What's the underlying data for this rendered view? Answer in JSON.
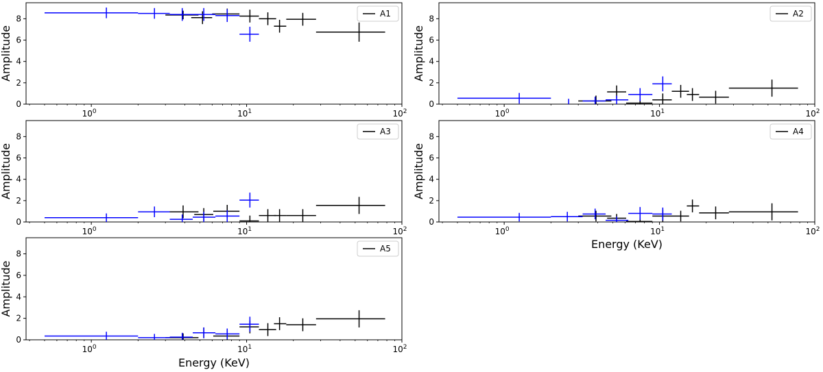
{
  "colors": {
    "series_black": "#000000",
    "series_blue": "#0000ff",
    "legend_border": "#cccccc"
  },
  "chart_data": [
    {
      "type": "scatter",
      "name": "A1",
      "legend": "A1",
      "legend_loc": "upper right",
      "ylabel": "Amplitude",
      "xlabel": "",
      "xscale": "log",
      "xlim": [
        0.38,
        100
      ],
      "ylim": [
        0,
        9.5
      ],
      "yticks": [
        0,
        2,
        4,
        6,
        8
      ],
      "xtick_labels": [
        {
          "base": "10",
          "exp": "0"
        },
        {
          "base": "10",
          "exp": "1"
        },
        {
          "base": "10",
          "exp": "2"
        }
      ],
      "series": [
        {
          "name": "black",
          "color": "black",
          "points": [
            {
              "x": 3.9,
              "xerr": [
                3.0,
                4.9
              ],
              "y": 8.35,
              "yerr": 0.4
            },
            {
              "x": 5.2,
              "xerr": [
                4.4,
                6.0
              ],
              "y": 8.1,
              "yerr": 0.6
            },
            {
              "x": 7.5,
              "xerr": [
                6.0,
                9.0
              ],
              "y": 8.45,
              "yerr": 0.5
            },
            {
              "x": 10.5,
              "xerr": [
                9.0,
                12.0
              ],
              "y": 8.25,
              "yerr": 0.6
            },
            {
              "x": 13.7,
              "xerr": [
                12.0,
                15.5
              ],
              "y": 8.0,
              "yerr": 0.6
            },
            {
              "x": 16.3,
              "xerr": [
                15.0,
                18.0
              ],
              "y": 7.3,
              "yerr": 0.6
            },
            {
              "x": 23.0,
              "xerr": [
                18.0,
                28.0
              ],
              "y": 7.95,
              "yerr": 0.6
            },
            {
              "x": 53.0,
              "xerr": [
                28.0,
                78.0
              ],
              "y": 6.75,
              "yerr": 0.9
            }
          ]
        },
        {
          "name": "blue",
          "color": "blue",
          "points": [
            {
              "x": 1.25,
              "xerr": [
                0.5,
                2.0
              ],
              "y": 8.55,
              "yerr": 0.5
            },
            {
              "x": 2.55,
              "xerr": [
                2.0,
                3.2
              ],
              "y": 8.5,
              "yerr": 0.5
            },
            {
              "x": 3.85,
              "xerr": [
                3.2,
                4.5
              ],
              "y": 8.4,
              "yerr": 0.6
            },
            {
              "x": 5.3,
              "xerr": [
                4.5,
                6.3
              ],
              "y": 8.4,
              "yerr": 0.6
            },
            {
              "x": 7.5,
              "xerr": [
                6.3,
                9.0
              ],
              "y": 8.3,
              "yerr": 0.6
            },
            {
              "x": 10.5,
              "xerr": [
                9.0,
                12.0
              ],
              "y": 6.55,
              "yerr": 0.7
            }
          ]
        }
      ]
    },
    {
      "type": "scatter",
      "name": "A2",
      "legend": "A2",
      "legend_loc": "upper right",
      "ylabel": "Amplitude",
      "xlabel": "",
      "xscale": "log",
      "xlim": [
        0.38,
        100
      ],
      "ylim": [
        0,
        9.5
      ],
      "yticks": [
        0,
        2,
        4,
        6,
        8
      ],
      "xtick_labels": [
        {
          "base": "10",
          "exp": "0"
        },
        {
          "base": "10",
          "exp": "1"
        },
        {
          "base": "10",
          "exp": "2"
        }
      ],
      "series": [
        {
          "name": "black",
          "color": "black",
          "points": [
            {
              "x": 3.9,
              "xerr": [
                3.0,
                4.9
              ],
              "y": 0.3,
              "yerr": 0.5
            },
            {
              "x": 5.3,
              "xerr": [
                4.6,
                6.1
              ],
              "y": 1.15,
              "yerr": 0.6
            },
            {
              "x": 7.5,
              "xerr": [
                6.1,
                9.0
              ],
              "y": 0.1,
              "yerr": 0.4
            },
            {
              "x": 10.5,
              "xerr": [
                9.0,
                12.0
              ],
              "y": 0.4,
              "yerr": 0.6
            },
            {
              "x": 13.7,
              "xerr": [
                12.0,
                15.5
              ],
              "y": 1.2,
              "yerr": 0.6
            },
            {
              "x": 16.3,
              "xerr": [
                15.0,
                18.0
              ],
              "y": 0.9,
              "yerr": 0.6
            },
            {
              "x": 23.0,
              "xerr": [
                18.0,
                28.0
              ],
              "y": 0.65,
              "yerr": 0.6
            },
            {
              "x": 53.0,
              "xerr": [
                28.0,
                78.0
              ],
              "y": 1.5,
              "yerr": 0.8
            }
          ]
        },
        {
          "name": "blue",
          "color": "blue",
          "points": [
            {
              "x": 1.25,
              "xerr": [
                0.5,
                2.0
              ],
              "y": 0.55,
              "yerr": 0.5
            },
            {
              "x": 2.6,
              "xerr": [
                2.6,
                2.6
              ],
              "y": 0.05,
              "yerr": 0.45
            },
            {
              "x": 3.85,
              "xerr": [
                3.2,
                4.5
              ],
              "y": 0.3,
              "yerr": 0.4
            },
            {
              "x": 5.3,
              "xerr": [
                4.5,
                6.3
              ],
              "y": 0.4,
              "yerr": 0.4
            },
            {
              "x": 7.5,
              "xerr": [
                6.3,
                9.0
              ],
              "y": 0.9,
              "yerr": 0.6
            },
            {
              "x": 10.5,
              "xerr": [
                9.0,
                12.0
              ],
              "y": 1.9,
              "yerr": 0.7
            }
          ]
        }
      ]
    },
    {
      "type": "scatter",
      "name": "A3",
      "legend": "A3",
      "legend_loc": "upper right",
      "ylabel": "Amplitude",
      "xlabel": "",
      "xscale": "log",
      "xlim": [
        0.38,
        100
      ],
      "ylim": [
        0,
        9.5
      ],
      "yticks": [
        0,
        2,
        4,
        6,
        8
      ],
      "xtick_labels": [
        {
          "base": "10",
          "exp": "0"
        },
        {
          "base": "10",
          "exp": "1"
        },
        {
          "base": "10",
          "exp": "2"
        }
      ],
      "series": [
        {
          "name": "black",
          "color": "black",
          "points": [
            {
              "x": 3.9,
              "xerr": [
                3.0,
                4.9
              ],
              "y": 0.95,
              "yerr": 0.6
            },
            {
              "x": 5.3,
              "xerr": [
                4.6,
                6.1
              ],
              "y": 0.7,
              "yerr": 0.6
            },
            {
              "x": 7.5,
              "xerr": [
                6.1,
                9.0
              ],
              "y": 1.0,
              "yerr": 0.6
            },
            {
              "x": 10.5,
              "xerr": [
                9.0,
                12.0
              ],
              "y": 0.1,
              "yerr": 0.5
            },
            {
              "x": 13.7,
              "xerr": [
                12.0,
                15.5
              ],
              "y": 0.6,
              "yerr": 0.6
            },
            {
              "x": 16.3,
              "xerr": [
                15.0,
                18.0
              ],
              "y": 0.6,
              "yerr": 0.6
            },
            {
              "x": 23.0,
              "xerr": [
                18.0,
                28.0
              ],
              "y": 0.6,
              "yerr": 0.6
            },
            {
              "x": 53.0,
              "xerr": [
                28.0,
                78.0
              ],
              "y": 1.55,
              "yerr": 0.8
            }
          ]
        },
        {
          "name": "blue",
          "color": "blue",
          "points": [
            {
              "x": 1.25,
              "xerr": [
                0.5,
                2.0
              ],
              "y": 0.4,
              "yerr": 0.4
            },
            {
              "x": 2.55,
              "xerr": [
                2.0,
                3.2
              ],
              "y": 0.95,
              "yerr": 0.5
            },
            {
              "x": 3.85,
              "xerr": [
                3.2,
                4.5
              ],
              "y": 0.25,
              "yerr": 0.45
            },
            {
              "x": 5.3,
              "xerr": [
                4.5,
                6.3
              ],
              "y": 0.45,
              "yerr": 0.5
            },
            {
              "x": 7.5,
              "xerr": [
                6.3,
                9.0
              ],
              "y": 0.55,
              "yerr": 0.55
            },
            {
              "x": 10.5,
              "xerr": [
                9.0,
                12.0
              ],
              "y": 2.05,
              "yerr": 0.7
            }
          ]
        }
      ]
    },
    {
      "type": "scatter",
      "name": "A4",
      "legend": "A4",
      "legend_loc": "upper right",
      "ylabel": "Amplitude",
      "xlabel": "Energy (KeV)",
      "xscale": "log",
      "xlim": [
        0.38,
        100
      ],
      "ylim": [
        0,
        9.5
      ],
      "yticks": [
        0,
        2,
        4,
        6,
        8
      ],
      "xtick_labels": [
        {
          "base": "10",
          "exp": "0"
        },
        {
          "base": "10",
          "exp": "1"
        },
        {
          "base": "10",
          "exp": "2"
        }
      ],
      "series": [
        {
          "name": "black",
          "color": "black",
          "points": [
            {
              "x": 3.9,
              "xerr": [
                3.0,
                4.9
              ],
              "y": 0.55,
              "yerr": 0.5
            },
            {
              "x": 5.3,
              "xerr": [
                4.6,
                6.1
              ],
              "y": 0.35,
              "yerr": 0.4
            },
            {
              "x": 7.5,
              "xerr": [
                6.1,
                9.0
              ],
              "y": 0.05,
              "yerr": 0.35
            },
            {
              "x": 10.5,
              "xerr": [
                9.0,
                12.0
              ],
              "y": 0.55,
              "yerr": 0.6
            },
            {
              "x": 13.7,
              "xerr": [
                12.0,
                15.5
              ],
              "y": 0.55,
              "yerr": 0.5
            },
            {
              "x": 16.3,
              "xerr": [
                15.0,
                18.0
              ],
              "y": 1.5,
              "yerr": 0.6
            },
            {
              "x": 23.0,
              "xerr": [
                18.0,
                28.0
              ],
              "y": 0.85,
              "yerr": 0.6
            },
            {
              "x": 53.0,
              "xerr": [
                28.0,
                78.0
              ],
              "y": 0.95,
              "yerr": 0.8
            }
          ]
        },
        {
          "name": "blue",
          "color": "blue",
          "points": [
            {
              "x": 1.25,
              "xerr": [
                0.5,
                2.0
              ],
              "y": 0.45,
              "yerr": 0.4
            },
            {
              "x": 2.55,
              "xerr": [
                2.0,
                3.2
              ],
              "y": 0.5,
              "yerr": 0.45
            },
            {
              "x": 3.85,
              "xerr": [
                3.2,
                4.5
              ],
              "y": 0.75,
              "yerr": 0.5
            },
            {
              "x": 5.3,
              "xerr": [
                4.5,
                6.3
              ],
              "y": 0.15,
              "yerr": 0.35
            },
            {
              "x": 7.5,
              "xerr": [
                6.3,
                9.0
              ],
              "y": 0.8,
              "yerr": 0.6
            },
            {
              "x": 10.5,
              "xerr": [
                9.0,
                12.0
              ],
              "y": 0.75,
              "yerr": 0.6
            }
          ]
        }
      ]
    },
    {
      "type": "scatter",
      "name": "A5",
      "legend": "A5",
      "legend_loc": "upper right",
      "ylabel": "Amplitude",
      "xlabel": "Energy (KeV)",
      "xscale": "log",
      "xlim": [
        0.38,
        100
      ],
      "ylim": [
        0,
        9.5
      ],
      "yticks": [
        0,
        2,
        4,
        6,
        8
      ],
      "xtick_labels": [
        {
          "base": "10",
          "exp": "0"
        },
        {
          "base": "10",
          "exp": "1"
        },
        {
          "base": "10",
          "exp": "2"
        }
      ],
      "series": [
        {
          "name": "black",
          "color": "black",
          "points": [
            {
              "x": 3.9,
              "xerr": [
                3.0,
                4.9
              ],
              "y": 0.2,
              "yerr": 0.4
            },
            {
              "x": 5.3,
              "xerr": [
                4.6,
                6.1
              ],
              "y": 0.65,
              "yerr": 0.5
            },
            {
              "x": 7.5,
              "xerr": [
                6.1,
                9.0
              ],
              "y": 0.35,
              "yerr": 0.5
            },
            {
              "x": 10.5,
              "xerr": [
                9.0,
                12.0
              ],
              "y": 1.2,
              "yerr": 0.6
            },
            {
              "x": 13.7,
              "xerr": [
                12.0,
                15.5
              ],
              "y": 0.95,
              "yerr": 0.6
            },
            {
              "x": 16.3,
              "xerr": [
                15.0,
                18.0
              ],
              "y": 1.5,
              "yerr": 0.6
            },
            {
              "x": 23.0,
              "xerr": [
                18.0,
                28.0
              ],
              "y": 1.4,
              "yerr": 0.6
            },
            {
              "x": 53.0,
              "xerr": [
                28.0,
                78.0
              ],
              "y": 1.95,
              "yerr": 0.8
            }
          ]
        },
        {
          "name": "blue",
          "color": "blue",
          "points": [
            {
              "x": 1.25,
              "xerr": [
                0.5,
                2.0
              ],
              "y": 0.35,
              "yerr": 0.4
            },
            {
              "x": 2.55,
              "xerr": [
                2.0,
                3.2
              ],
              "y": 0.2,
              "yerr": 0.35
            },
            {
              "x": 3.85,
              "xerr": [
                3.2,
                4.5
              ],
              "y": 0.25,
              "yerr": 0.4
            },
            {
              "x": 5.3,
              "xerr": [
                4.5,
                6.3
              ],
              "y": 0.65,
              "yerr": 0.5
            },
            {
              "x": 7.5,
              "xerr": [
                6.3,
                9.0
              ],
              "y": 0.55,
              "yerr": 0.5
            },
            {
              "x": 10.5,
              "xerr": [
                9.0,
                12.0
              ],
              "y": 1.45,
              "yerr": 0.7
            }
          ]
        }
      ]
    }
  ]
}
